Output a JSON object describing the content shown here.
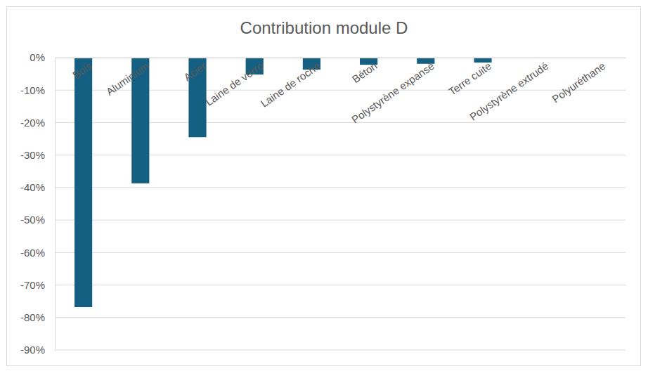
{
  "chart_data": {
    "type": "bar",
    "title": "Contribution module D",
    "categories": [
      "Bois",
      "Aluminium",
      "Acier",
      "Laine de verre",
      "Laine de roche",
      "Béton",
      "Polystyrène expansé",
      "Terre cuite",
      "Polystyrène extrudé",
      "Polyuréthane"
    ],
    "values": [
      -76.8,
      -38.7,
      -24.5,
      -5.2,
      -3.7,
      -2.2,
      -1.9,
      -1.5,
      0,
      0
    ],
    "color": "#156082",
    "ylim": [
      -90,
      0
    ],
    "yticks": [
      {
        "value": 0,
        "label": "0%"
      },
      {
        "value": -10,
        "label": "-10%"
      },
      {
        "value": -20,
        "label": "-20%"
      },
      {
        "value": -30,
        "label": "-30%"
      },
      {
        "value": -40,
        "label": "-40%"
      },
      {
        "value": -50,
        "label": "-50%"
      },
      {
        "value": -60,
        "label": "-60%"
      },
      {
        "value": -70,
        "label": "-70%"
      },
      {
        "value": -80,
        "label": "-80%"
      },
      {
        "value": -90,
        "label": "-90%"
      }
    ],
    "grid": true
  }
}
